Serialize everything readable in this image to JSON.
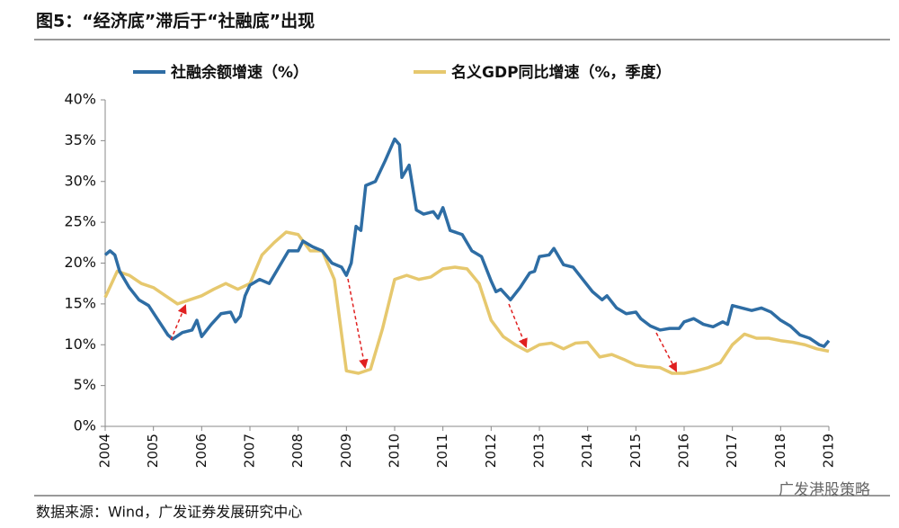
{
  "chart_data": {
    "type": "line",
    "title": "图5：“经济底”滞后于“社融底”出现",
    "source": "数据来源：Wind，广发证券发展研究中心",
    "watermark": "广发港股策略",
    "xlim": [
      2004,
      2019
    ],
    "xticks": [
      2004,
      2005,
      2006,
      2007,
      2008,
      2009,
      2010,
      2011,
      2012,
      2013,
      2014,
      2015,
      2016,
      2017,
      2018,
      2019
    ],
    "ylim": [
      0,
      40
    ],
    "yticks": [
      {
        "value": 0,
        "label": "0%"
      },
      {
        "value": 5,
        "label": "5%"
      },
      {
        "value": 10,
        "label": "10%"
      },
      {
        "value": 15,
        "label": "15%"
      },
      {
        "value": 20,
        "label": "20%"
      },
      {
        "value": 25,
        "label": "25%"
      },
      {
        "value": 30,
        "label": "30%"
      },
      {
        "value": 35,
        "label": "35%"
      },
      {
        "value": 40,
        "label": "40%"
      }
    ],
    "grid": false,
    "series": [
      {
        "name": "社融余额增速（%）",
        "color": "#2e6da4",
        "x": [
          2004.0,
          2004.1,
          2004.2,
          2004.3,
          2004.5,
          2004.7,
          2004.9,
          2005.1,
          2005.3,
          2005.4,
          2005.6,
          2005.8,
          2005.9,
          2006.0,
          2006.2,
          2006.4,
          2006.6,
          2006.7,
          2006.8,
          2006.9,
          2007.0,
          2007.2,
          2007.4,
          2007.6,
          2007.8,
          2008.0,
          2008.1,
          2008.3,
          2008.5,
          2008.7,
          2008.9,
          2009.0,
          2009.1,
          2009.2,
          2009.3,
          2009.4,
          2009.6,
          2009.8,
          2010.0,
          2010.1,
          2010.15,
          2010.3,
          2010.45,
          2010.6,
          2010.8,
          2010.9,
          2011.0,
          2011.15,
          2011.4,
          2011.6,
          2011.8,
          2012.0,
          2012.1,
          2012.2,
          2012.4,
          2012.6,
          2012.8,
          2012.9,
          2013.0,
          2013.2,
          2013.3,
          2013.5,
          2013.7,
          2013.9,
          2014.1,
          2014.3,
          2014.4,
          2014.6,
          2014.8,
          2015.0,
          2015.1,
          2015.3,
          2015.5,
          2015.7,
          2015.9,
          2016.0,
          2016.2,
          2016.4,
          2016.6,
          2016.8,
          2016.9,
          2017.0,
          2017.2,
          2017.4,
          2017.6,
          2017.8,
          2018.0,
          2018.2,
          2018.4,
          2018.6,
          2018.8,
          2018.9,
          2019.0
        ],
        "values": [
          21,
          21.5,
          21,
          19,
          17,
          15.5,
          14.8,
          13,
          11.2,
          10.7,
          11.5,
          11.8,
          13,
          11,
          12.5,
          13.8,
          14,
          12.8,
          13.5,
          16,
          17.3,
          18,
          17.5,
          19.5,
          21.5,
          21.5,
          22.7,
          22,
          21.5,
          20,
          19.5,
          18.5,
          20,
          24.5,
          24,
          29.5,
          30,
          32.5,
          35.2,
          34.5,
          30.5,
          32,
          26.5,
          26,
          26.3,
          25.5,
          26.8,
          24,
          23.5,
          21.5,
          20.8,
          17.8,
          16.5,
          16.8,
          15.5,
          17,
          18.8,
          19,
          20.8,
          21,
          21.8,
          19.8,
          19.5,
          18,
          16.5,
          15.5,
          16,
          14.5,
          13.8,
          14,
          13.2,
          12.3,
          11.8,
          12,
          12,
          12.8,
          13.2,
          12.5,
          12.2,
          12.8,
          12.5,
          14.8,
          14.5,
          14.2,
          14.5,
          14,
          13,
          12.3,
          11.2,
          10.8,
          10,
          9.8,
          10.5
        ]
      },
      {
        "name": "名义GDP同比增速（%，季度）",
        "color": "#e6c86e",
        "x": [
          2004.0,
          2004.25,
          2004.5,
          2004.75,
          2005.0,
          2005.25,
          2005.5,
          2005.75,
          2006.0,
          2006.25,
          2006.5,
          2006.75,
          2007.0,
          2007.25,
          2007.5,
          2007.75,
          2008.0,
          2008.25,
          2008.5,
          2008.75,
          2009.0,
          2009.25,
          2009.5,
          2009.75,
          2010.0,
          2010.25,
          2010.5,
          2010.75,
          2011.0,
          2011.25,
          2011.5,
          2011.75,
          2012.0,
          2012.25,
          2012.5,
          2012.75,
          2013.0,
          2013.25,
          2013.5,
          2013.75,
          2014.0,
          2014.25,
          2014.5,
          2014.75,
          2015.0,
          2015.25,
          2015.5,
          2015.75,
          2016.0,
          2016.25,
          2016.5,
          2016.75,
          2017.0,
          2017.25,
          2017.5,
          2017.75,
          2018.0,
          2018.25,
          2018.5,
          2018.75,
          2019.0
        ],
        "values": [
          15.8,
          19,
          18.5,
          17.5,
          17,
          16,
          15,
          15.5,
          16,
          16.8,
          17.5,
          16.8,
          17.5,
          21,
          22.5,
          23.8,
          23.5,
          21.5,
          21.5,
          18,
          6.8,
          6.5,
          7,
          12,
          18,
          18.5,
          18,
          18.3,
          19.3,
          19.5,
          19.3,
          17.5,
          13,
          11,
          10,
          9.2,
          10,
          10.2,
          9.5,
          10.2,
          10.3,
          8.5,
          8.8,
          8.2,
          7.5,
          7.3,
          7.2,
          6.5,
          6.5,
          6.8,
          7.2,
          7.8,
          10,
          11.3,
          10.8,
          10.8,
          10.5,
          10.3,
          10,
          9.5,
          9.2
        ]
      }
    ]
  }
}
